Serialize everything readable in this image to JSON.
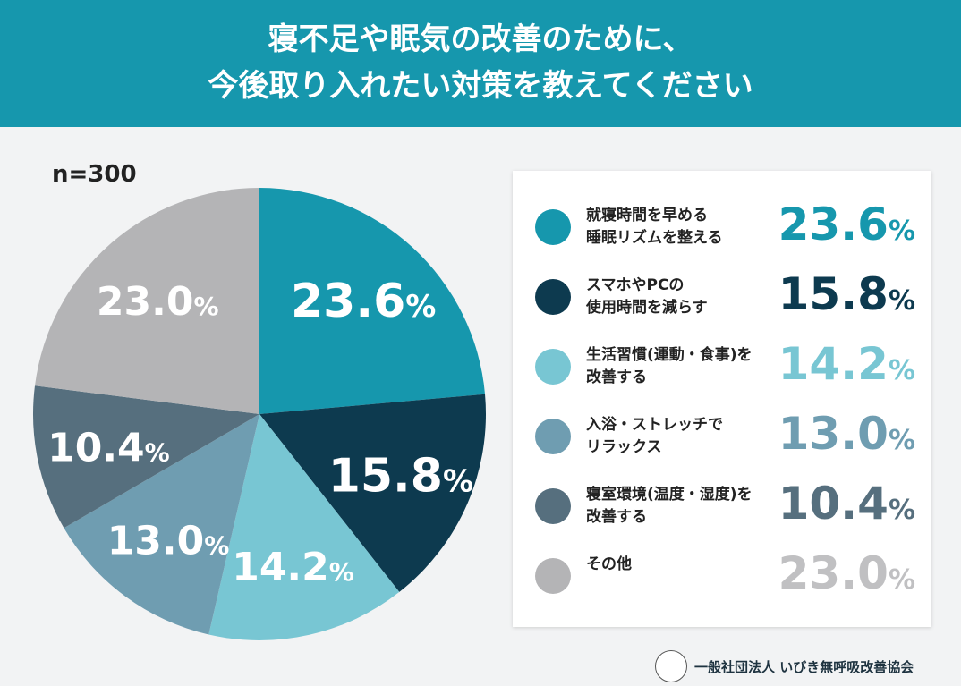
{
  "header": {
    "line1": "寝不足や眠気の改善のために、",
    "line2": "今後取り入れたい対策を教えてください"
  },
  "sample": "n=300",
  "chart_data": {
    "type": "pie",
    "start": "top",
    "direction": "clockwise",
    "unit": "%",
    "categories": [
      "就寝時間を早める\n睡眠リズムを整える",
      "スマホやPCの\n使用時間を減らす",
      "生活習慣(運動・食事)を\n改善する",
      "入浴・ストレッチで\nリラックス",
      "寝室環境(温度・湿度)を\n改善する",
      "その他"
    ],
    "values": [
      23.6,
      15.8,
      14.2,
      13.0,
      10.4,
      23.0
    ],
    "labels": [
      "23.6",
      "15.8",
      "14.2",
      "13.0",
      "10.4",
      "23.0"
    ],
    "colors": [
      "#1697ad",
      "#0d3a4f",
      "#78c6d3",
      "#6f9db1",
      "#566f7e",
      "#b4b4b6"
    ],
    "legend": "right"
  },
  "footer": {
    "org": "一般社団法人 いびき無呼吸改善協会"
  }
}
